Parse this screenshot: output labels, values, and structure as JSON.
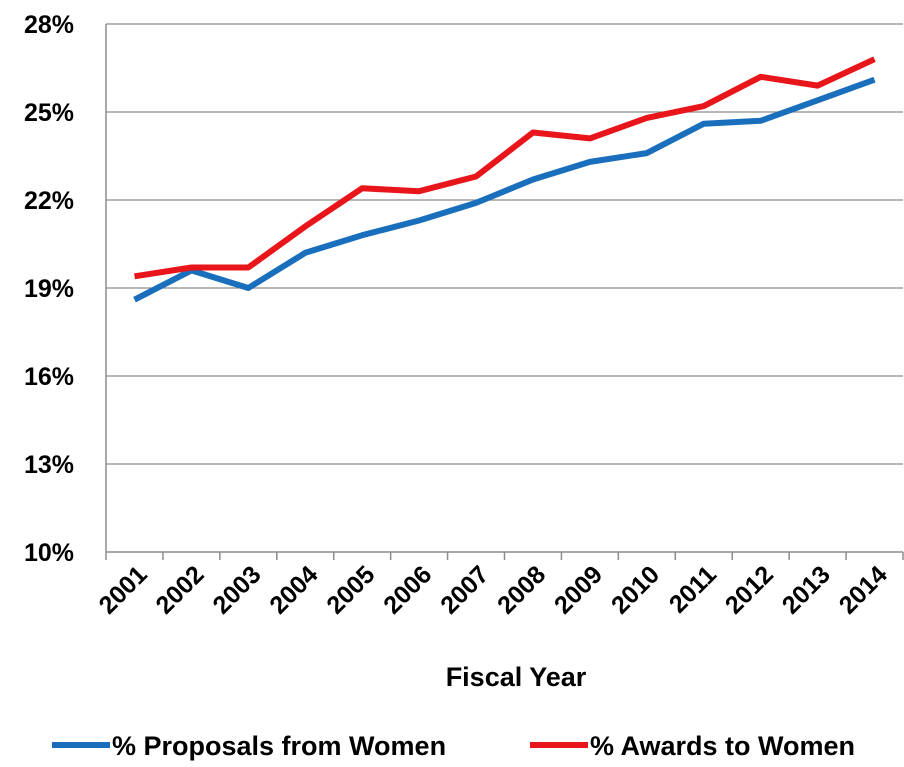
{
  "chart_data": {
    "type": "line",
    "title": "",
    "xlabel": "Fiscal Year",
    "ylabel": "",
    "categories": [
      "2001",
      "2002",
      "2003",
      "2004",
      "2005",
      "2006",
      "2007",
      "2008",
      "2009",
      "2010",
      "2011",
      "2012",
      "2013",
      "2014"
    ],
    "y_ticks": [
      {
        "value": 10,
        "label": "10%"
      },
      {
        "value": 13,
        "label": "13%"
      },
      {
        "value": 16,
        "label": "16%"
      },
      {
        "value": 19,
        "label": "19%"
      },
      {
        "value": 22,
        "label": "22%"
      },
      {
        "value": 25,
        "label": "25%"
      },
      {
        "value": 28,
        "label": "28%"
      }
    ],
    "ylim": [
      10,
      28
    ],
    "grid": true,
    "legend_position": "bottom",
    "series": [
      {
        "name": "% Proposals from Women",
        "color": "#1a6fbd",
        "values": [
          18.6,
          19.6,
          19.0,
          20.2,
          20.8,
          21.3,
          21.9,
          22.7,
          23.3,
          23.6,
          24.6,
          24.7,
          25.4,
          26.1
        ]
      },
      {
        "name": "% Awards to Women",
        "color": "#e8161b",
        "values": [
          19.4,
          19.7,
          19.7,
          21.1,
          22.4,
          22.3,
          22.8,
          24.3,
          24.1,
          24.8,
          25.2,
          26.2,
          25.9,
          26.8
        ]
      }
    ]
  }
}
